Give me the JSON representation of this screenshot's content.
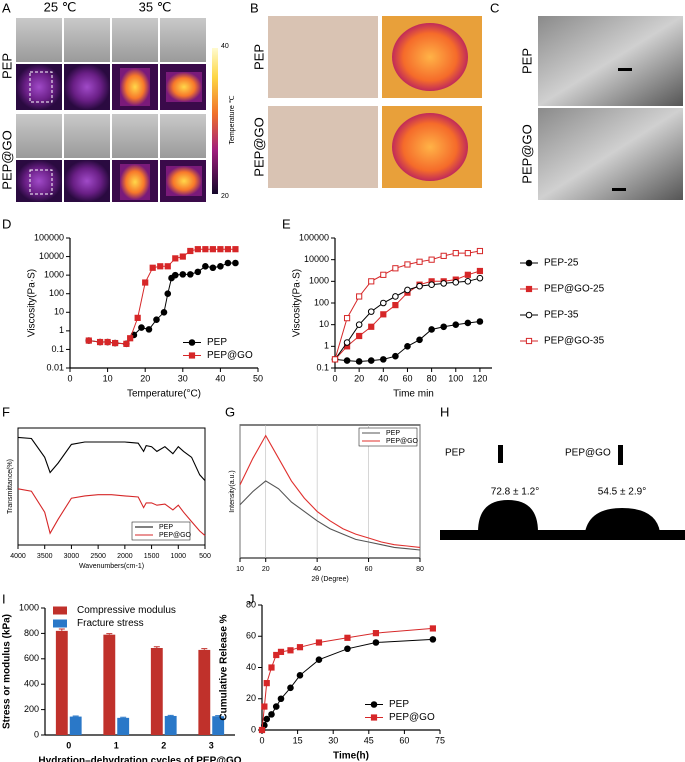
{
  "panels": {
    "A": {
      "label": "A",
      "columns": [
        "25 ℃",
        "35 ℃"
      ],
      "rows": [
        "PEP",
        "PEP@GO"
      ],
      "colorbar": {
        "title": "Temperature ℃",
        "max": 40,
        "min": 20
      }
    },
    "B": {
      "label": "B",
      "rows": [
        "PEP",
        "PEP@GO"
      ]
    },
    "C": {
      "label": "C",
      "rows": [
        "PEP",
        "PEP@GO"
      ]
    },
    "H": {
      "label": "H",
      "samples": [
        "PEP",
        "PEP@GO"
      ],
      "angles": [
        "72.8 ± 1.2°",
        "54.5 ± 2.9°"
      ]
    }
  },
  "chart_data": [
    {
      "type": "line",
      "label": "D",
      "xlabel": "Temperature(°C)",
      "ylabel": "Viscosity(Pa·S)",
      "ylog": true,
      "xlim": [
        0,
        50
      ],
      "xticks": [
        0,
        10,
        20,
        30,
        40,
        50
      ],
      "ylim": [
        0.01,
        100000
      ],
      "yticks": [
        0.01,
        0.1,
        1,
        10,
        100,
        1000,
        10000,
        100000
      ],
      "legend": "lower right",
      "series": [
        {
          "name": "PEP",
          "color": "#000000",
          "marker": "circle",
          "filled": true,
          "x": [
            5,
            8,
            10,
            12,
            15,
            17,
            19,
            21,
            23,
            25,
            26,
            27,
            28,
            30,
            32,
            34,
            36,
            38,
            40,
            42,
            44
          ],
          "values": [
            0.3,
            0.25,
            0.25,
            0.22,
            0.2,
            0.6,
            1.5,
            1.2,
            4,
            10,
            100,
            700,
            1000,
            1100,
            1100,
            1500,
            3000,
            2500,
            3000,
            4500,
            4500
          ]
        },
        {
          "name": "PEP@GO",
          "color": "#d62728",
          "marker": "square",
          "filled": true,
          "x": [
            5,
            8,
            10,
            12,
            15,
            16,
            18,
            20,
            22,
            24,
            26,
            28,
            30,
            32,
            34,
            36,
            38,
            40,
            42,
            44
          ],
          "values": [
            0.3,
            0.25,
            0.25,
            0.22,
            0.2,
            0.4,
            5,
            400,
            2500,
            3000,
            3000,
            8000,
            10000,
            20000,
            25000,
            25000,
            25000,
            25000,
            25000,
            25000
          ]
        }
      ]
    },
    {
      "type": "line",
      "label": "E",
      "xlabel": "Time min",
      "ylabel": "Viscosity(Pa·S)",
      "ylog": true,
      "xlim": [
        0,
        130
      ],
      "xticks": [
        0,
        20,
        40,
        60,
        80,
        100,
        120
      ],
      "ylim": [
        0.1,
        100000
      ],
      "yticks": [
        0.1,
        1,
        10,
        100,
        1000,
        10000,
        100000
      ],
      "legend": "right",
      "x": [
        0,
        10,
        20,
        30,
        40,
        50,
        60,
        70,
        80,
        90,
        100,
        110,
        120
      ],
      "series": [
        {
          "name": "PEP-25",
          "color": "#000000",
          "marker": "circle",
          "filled": true,
          "values": [
            0.25,
            0.22,
            0.2,
            0.22,
            0.25,
            0.35,
            1,
            2,
            6,
            8,
            10,
            12,
            14
          ]
        },
        {
          "name": "PEP@GO-25",
          "color": "#d62728",
          "marker": "square",
          "filled": true,
          "values": [
            0.25,
            1,
            3,
            8,
            30,
            80,
            300,
            700,
            1000,
            1000,
            1200,
            2000,
            3000
          ]
        },
        {
          "name": "PEP-35",
          "color": "#000000",
          "marker": "circle",
          "filled": false,
          "values": [
            0.25,
            1.5,
            10,
            40,
            100,
            200,
            400,
            600,
            700,
            800,
            900,
            1000,
            1400
          ]
        },
        {
          "name": "PEP@GO-35",
          "color": "#d62728",
          "marker": "square",
          "filled": false,
          "values": [
            0.25,
            20,
            200,
            1000,
            2000,
            4000,
            6000,
            8000,
            10000,
            15000,
            20000,
            20000,
            25000
          ]
        }
      ]
    },
    {
      "type": "line",
      "label": "F",
      "xlabel": "Wavenumbers(cm-1)",
      "ylabel": "Transmittance(%)",
      "frame": "box",
      "xlim": [
        4000,
        500
      ],
      "xticks": [
        4000,
        3500,
        3000,
        2500,
        2000,
        1500,
        1000,
        500
      ],
      "ylim": [
        0,
        100
      ],
      "legend": "lower right",
      "x": [
        4000,
        3750,
        3500,
        3400,
        3250,
        3000,
        2750,
        2500,
        2250,
        2000,
        1750,
        1650,
        1600,
        1500,
        1400,
        1250,
        1100,
        1000,
        900,
        750,
        600,
        500
      ],
      "series": [
        {
          "name": "PEP",
          "color": "#000000",
          "values": [
            92,
            91,
            75,
            62,
            70,
            86,
            88,
            88,
            88,
            88,
            87,
            80,
            85,
            84,
            80,
            84,
            78,
            84,
            80,
            75,
            60,
            55
          ]
        },
        {
          "name": "PEP@GO",
          "color": "#d62728",
          "values": [
            48,
            46,
            28,
            10,
            22,
            40,
            42,
            43,
            43,
            42,
            41,
            32,
            36,
            36,
            34,
            35,
            30,
            34,
            28,
            20,
            12,
            8
          ]
        }
      ]
    },
    {
      "type": "line",
      "label": "G",
      "xlabel": "2θ (Degree)",
      "ylabel": "Intensity(a.u.)",
      "frame": "box",
      "xgrid": true,
      "xlim": [
        10,
        80
      ],
      "xticks": [
        10,
        20,
        40,
        60,
        80
      ],
      "ylim": [
        0,
        100
      ],
      "legend": "upper right",
      "x": [
        10,
        15,
        20,
        25,
        30,
        35,
        40,
        45,
        50,
        55,
        60,
        65,
        70,
        75,
        80
      ],
      "series": [
        {
          "name": "PEP",
          "color": "#555555",
          "values": [
            40,
            50,
            58,
            52,
            42,
            35,
            28,
            22,
            18,
            14,
            12,
            10,
            8,
            7,
            6
          ]
        },
        {
          "name": "PEP@GO",
          "color": "#e0302e",
          "values": [
            55,
            75,
            92,
            75,
            58,
            45,
            35,
            28,
            22,
            18,
            15,
            12,
            10,
            9,
            8
          ]
        }
      ]
    },
    {
      "type": "bar",
      "label": "I",
      "xlabel": "Hydration–dehydration cycles of PEP@GO",
      "ylabel": "Stress or modulus (kPa)",
      "categories": [
        "0",
        "1",
        "2",
        "3"
      ],
      "ylim": [
        0,
        1000
      ],
      "yticks": [
        0,
        200,
        400,
        600,
        800,
        1000
      ],
      "legend": "upper center",
      "series": [
        {
          "name": "Compressive modulus",
          "color": "#c0312b",
          "values": [
            820,
            790,
            685,
            670
          ],
          "errors": [
            15,
            8,
            10,
            10
          ]
        },
        {
          "name": "Fracture stress",
          "color": "#2a78c8",
          "values": [
            145,
            135,
            150,
            148
          ],
          "errors": [
            5,
            5,
            5,
            5
          ]
        }
      ]
    },
    {
      "type": "line",
      "label": "J",
      "xlabel": "Time(h)",
      "ylabel": "Cumulative Release %",
      "xlim": [
        0,
        75
      ],
      "xticks": [
        0,
        15,
        30,
        45,
        60,
        75
      ],
      "ylim": [
        0,
        80
      ],
      "yticks": [
        0,
        20,
        40,
        60,
        80
      ],
      "legend": "lower right",
      "x": [
        0,
        1,
        2,
        4,
        6,
        8,
        12,
        16,
        24,
        36,
        48,
        72
      ],
      "series": [
        {
          "name": "PEP",
          "color": "#000000",
          "marker": "circle",
          "filled": true,
          "values": [
            0,
            3,
            7,
            10,
            15,
            20,
            27,
            35,
            45,
            52,
            56,
            58
          ]
        },
        {
          "name": "PEP@GO",
          "color": "#d62728",
          "marker": "square",
          "filled": true,
          "values": [
            0,
            15,
            30,
            40,
            48,
            50,
            51,
            53,
            56,
            59,
            62,
            65
          ]
        }
      ]
    }
  ]
}
